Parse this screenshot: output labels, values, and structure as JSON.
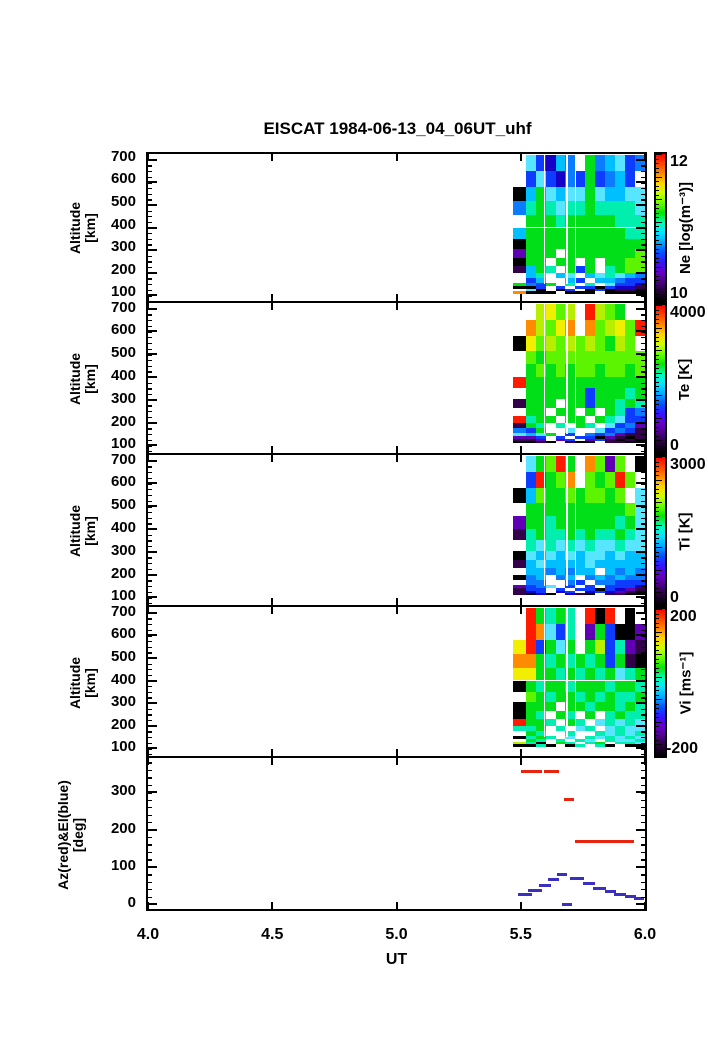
{
  "title": "EISCAT 1984-06-13_04_06UT_uhf",
  "chart_data": {
    "type": [
      "heatmap",
      "heatmap",
      "heatmap",
      "heatmap",
      "line"
    ],
    "xlabel": "UT",
    "x_range": [
      4.0,
      6.0
    ],
    "x_ticks": [
      4.0,
      4.5,
      5.0,
      5.5,
      6.0
    ],
    "x_tick_labels": [
      "4.0",
      "4.5",
      "5.0",
      "5.5",
      "6.0"
    ],
    "data_ut_extent": [
      5.47,
      6.0
    ],
    "col_edges_ut": [
      5.47,
      5.52,
      5.56,
      5.6,
      5.64,
      5.68,
      5.72,
      5.76,
      5.8,
      5.84,
      5.88,
      5.92,
      5.96,
      6.0
    ],
    "alt_bounds_km": [
      720,
      650,
      580,
      515,
      455,
      400,
      350,
      305,
      265,
      230,
      200,
      175,
      155,
      140,
      128,
      118,
      108
    ],
    "white_gaps_ut": [
      5.595,
      5.685,
      5.72
    ],
    "palette": {
      "K": "#000000",
      "P": "#33004a",
      "V": "#5f00b5",
      "D": "#1600c8",
      "B": "#0d3cff",
      "b": "#0a7cff",
      "C": "#00bfff",
      "c": "#58e5ff",
      "T": "#00efae",
      "G": "#00df17",
      "g": "#5df400",
      "y": "#b8ee00",
      "Y": "#f2ee00",
      "O": "#ff8c00",
      "R": "#ff1a00",
      "W": ""
    },
    "colorbar_stops_bottom_to_top": [
      "#000000",
      "#250038",
      "#4b0082",
      "#6600cc",
      "#3314ff",
      "#0055ff",
      "#00aaff",
      "#00e6ff",
      "#00ffb3",
      "#00e600",
      "#66ff00",
      "#ccff00",
      "#ffd500",
      "#ff8800",
      "#ff4400",
      "#ff0000"
    ],
    "panels": [
      {
        "name": "Ne",
        "ylabel_lines": [
          "Altitude",
          "[km]"
        ],
        "y_range": [
          75,
          725
        ],
        "y_ticks": [
          100,
          200,
          300,
          400,
          500,
          600,
          700
        ],
        "y_minor_step": 25,
        "colorbar": {
          "label": "Ne [log(m⁻³)]",
          "top": "12",
          "bottom": "10",
          "range": [
            10,
            12
          ]
        },
        "grid": [
          "WcBDCbWGbCcBb",
          "WBcBDbBGBbCBW",
          "KCGcCccGcCCcc",
          "bTGTcTTGTTTTc",
          "WGGGTGGGGGTTT",
          "CGGGGGGGGGGTT",
          "KGGGGGGGGGGGG",
          "VGGGWGGGGGGGg",
          "KGGWGGWGWGGgg",
          "PCGTWGBGWTGgg",
          "WCTWCcWCcTcCb",
          "WBCWWCBWCCbBB",
          "GbBGWTWTWcBBD",
          "KKBWBWBBKBDDP",
          "WcKWKBWKBKPPK",
          "OKKKWKKKWKKKK"
        ]
      },
      {
        "name": "Te",
        "ylabel_lines": [
          "Altitude",
          "[km]"
        ],
        "y_range": [
          75,
          725
        ],
        "y_ticks": [
          100,
          200,
          300,
          400,
          500,
          600,
          700
        ],
        "y_minor_step": 25,
        "colorbar": {
          "label": "Te [K]",
          "top": "4000",
          "bottom": "0",
          "range": [
            0,
            4000
          ]
        },
        "grid": [
          "WWyYgyWRygGWW",
          "WOygYOWOgyYgR",
          "KYgygygygGygW",
          "WgGgggggggggg",
          "WGgGgGggGggGg",
          "RGGGGGGGGGGGG",
          "WGGGGGGBGGGTG",
          "PGGGWGGBGGTGT",
          "WGGWGGWGWGTBb",
          "RTGGWGGWGTcBB",
          "PGTWTWGTWcBbV",
          "bBGWWcWWcBbBP",
          "cCcGWBWbBbVPP",
          "VVBWBWBBKVPKP",
          "PPVWVBWVBPKPK",
          "KKPKWPKKWPPKK"
        ]
      },
      {
        "name": "Ti",
        "ylabel_lines": [
          "Altitude",
          "[km]"
        ],
        "y_range": [
          75,
          725
        ],
        "y_ticks": [
          100,
          200,
          300,
          400,
          500,
          600,
          700
        ],
        "y_minor_step": 25,
        "colorbar": {
          "label": "Ti [K]",
          "top": "3000",
          "bottom": "0",
          "range": [
            0,
            3000
          ]
        },
        "grid": [
          "WcGgRGWOgVgWK",
          "WBRGgOWgGgRgW",
          "KCgGGgGggGgWc",
          "WGGGGGGGGGGgc",
          "VGGTGGGGGGTGc",
          "PTGTTGTGTTGTc",
          "WTcTcTcTccTcc",
          "KcCcCcCccCcCC",
          "PCcCCCCcCCCCC",
          "WCCbCbCCWCbCb",
          "KbCWbCWbCbCbb",
          "WbbWWbBWbbBBB",
          "VBbcWBWBWBBBD",
          "PBBWBWBBKBDVP",
          "PDBWDBWDBDVPK",
          "PKDKWDPKWPPKK"
        ]
      },
      {
        "name": "Vi",
        "ylabel_lines": [
          "Altitude",
          "[km]"
        ],
        "y_range": [
          75,
          725
        ],
        "y_ticks": [
          100,
          200,
          300,
          400,
          500,
          600,
          700
        ],
        "y_minor_step": 25,
        "colorbar": {
          "label": "Vi [ms⁻¹]",
          "top": "200",
          "bottom": "-200",
          "range": [
            -200,
            200
          ]
        },
        "grid": [
          "WRGTGTWRKRWKW",
          "WROcBTWVGBKKV",
          "YRBGcGWGyBTVP",
          "OOGTGTGTGBGPK",
          "YYGGTGTGTGcTG",
          "KGTGGTGGGTGGT",
          "WgGTGGTGTGTTG",
          "KGGGWGGTGGTGT",
          "KGTWGTWGWTGTT",
          "RGGTWGTWcTcTc",
          "TTGWTWcTWcTcc",
          "WGTWWTWWTcTcT",
          "KTGTWcWTcTcTc",
          "WGTWTWTcWTccT",
          "yTKWGTWTGWTTc",
          "KKTKWKTWTKWKK"
        ]
      },
      {
        "name": "AzEl",
        "ylabel_lines": [
          "Az(red)&El(blue)",
          "[deg]"
        ],
        "y_range": [
          -8,
          392
        ],
        "y_ticks": [
          0,
          100,
          200,
          300
        ],
        "y_minor_step": 20,
        "series": [
          {
            "name": "Az",
            "color": "#e8230f",
            "segments": [
              [
                5.5,
                5.585,
                355
              ],
              [
                5.595,
                5.655,
                355
              ],
              [
                5.675,
                5.715,
                281
              ],
              [
                5.72,
                5.955,
                168
              ]
            ]
          },
          {
            "name": "El",
            "color": "#3a2fc0",
            "segments": [
              [
                5.49,
                5.545,
                26
              ],
              [
                5.53,
                5.585,
                37
              ],
              [
                5.575,
                5.62,
                50
              ],
              [
                5.61,
                5.655,
                65
              ],
              [
                5.645,
                5.685,
                78
              ],
              [
                5.7,
                5.755,
                68
              ],
              [
                5.75,
                5.8,
                55
              ],
              [
                5.79,
                5.845,
                42
              ],
              [
                5.84,
                5.885,
                34
              ],
              [
                5.875,
                5.925,
                26
              ],
              [
                5.92,
                5.965,
                21
              ],
              [
                5.955,
                5.995,
                15
              ],
              [
                5.665,
                5.705,
                0
              ]
            ]
          }
        ]
      }
    ]
  }
}
